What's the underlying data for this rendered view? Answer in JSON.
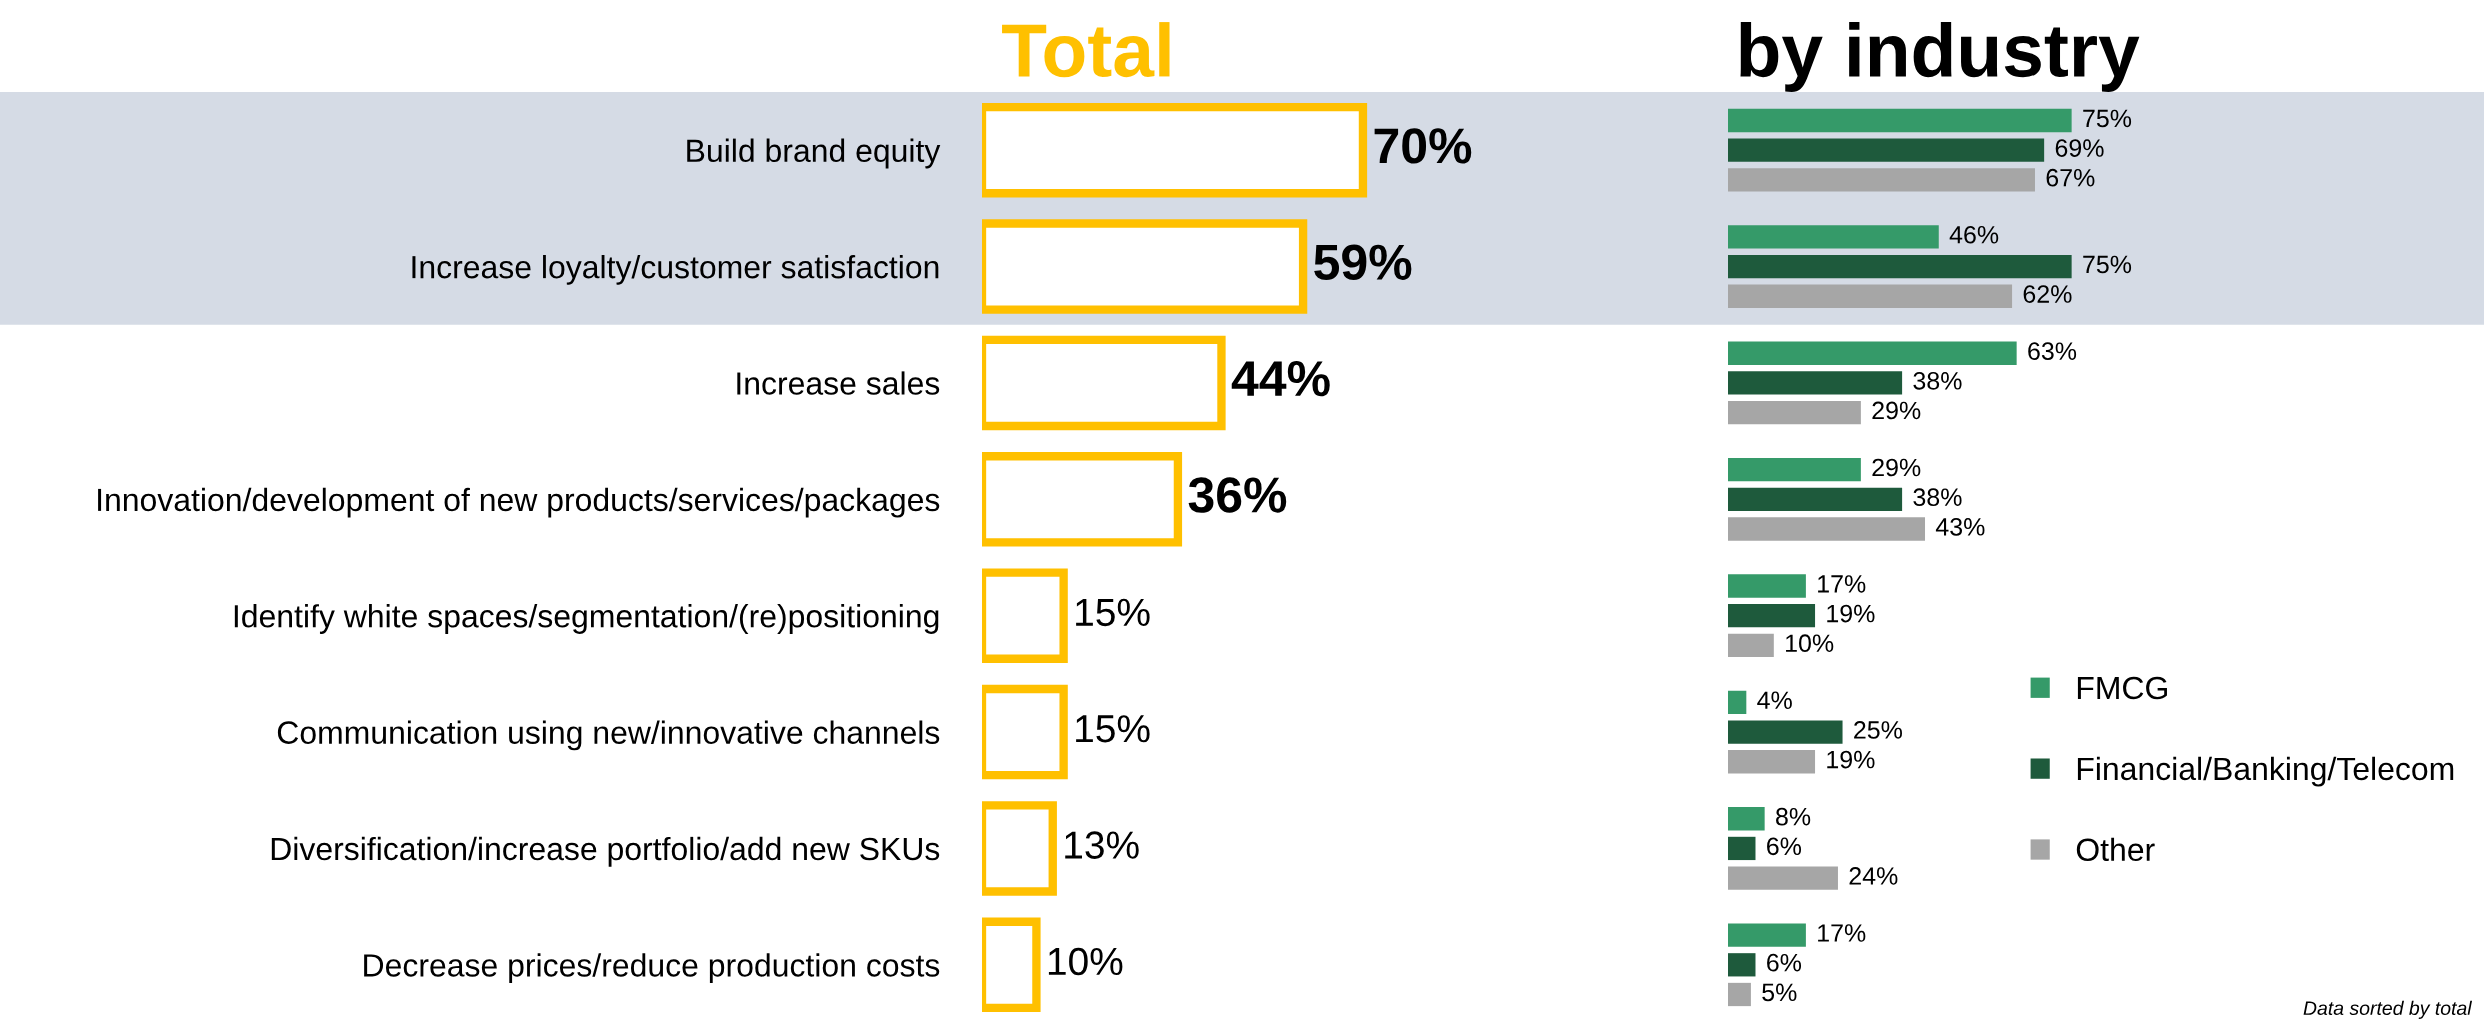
{
  "chart_data": [
    {
      "type": "bar",
      "orientation": "horizontal",
      "title": "Total",
      "color": "#ffc000",
      "categories": [
        "Build brand equity",
        "Increase loyalty/customer satisfaction",
        "Increase sales",
        "Innovation/development of new products/services/packages",
        "Identify white spaces/segmentation/(re)positioning",
        "Communication using new/innovative channels",
        "Diversification/increase portfolio/add new SKUs",
        "Decrease prices/reduce production costs"
      ],
      "values": [
        70,
        59,
        44,
        36,
        15,
        15,
        13,
        10
      ],
      "value_labels": [
        "70%",
        "59%",
        "44%",
        "36%",
        "15%",
        "15%",
        "13%",
        "10%"
      ],
      "bands": [
        {
          "axis": "y",
          "from": "Build brand equity",
          "to": "Increase loyalty/customer satisfaction",
          "color": "#d5dbe5"
        }
      ]
    },
    {
      "type": "bar",
      "orientation": "horizontal",
      "title": "by industry",
      "legend": "right",
      "categories": [
        null,
        null,
        null,
        null,
        null,
        null,
        null,
        null
      ],
      "series": [
        {
          "name": "FMCG",
          "color": "#359a69",
          "values": [
            75,
            46,
            63,
            29,
            17,
            4,
            8,
            17
          ],
          "value_labels": [
            "75%",
            "46%",
            "63%",
            "29%",
            "17%",
            "4%",
            "8%",
            "17%"
          ]
        },
        {
          "name": "Financial/Banking/Telecom",
          "color": "#1e5a3c",
          "values": [
            69,
            75,
            38,
            38,
            19,
            25,
            6,
            6
          ],
          "value_labels": [
            "69%",
            "75%",
            "38%",
            "38%",
            "19%",
            "25%",
            "6%",
            "6%"
          ]
        },
        {
          "name": "Other",
          "color": "#a6a6a6",
          "values": [
            67,
            62,
            29,
            43,
            10,
            19,
            24,
            5
          ],
          "value_labels": [
            "67%",
            "62%",
            "29%",
            "43%",
            "10%",
            "19%",
            "24%",
            "5%"
          ]
        }
      ],
      "annotations": [
        "Data sorted by total"
      ]
    }
  ]
}
